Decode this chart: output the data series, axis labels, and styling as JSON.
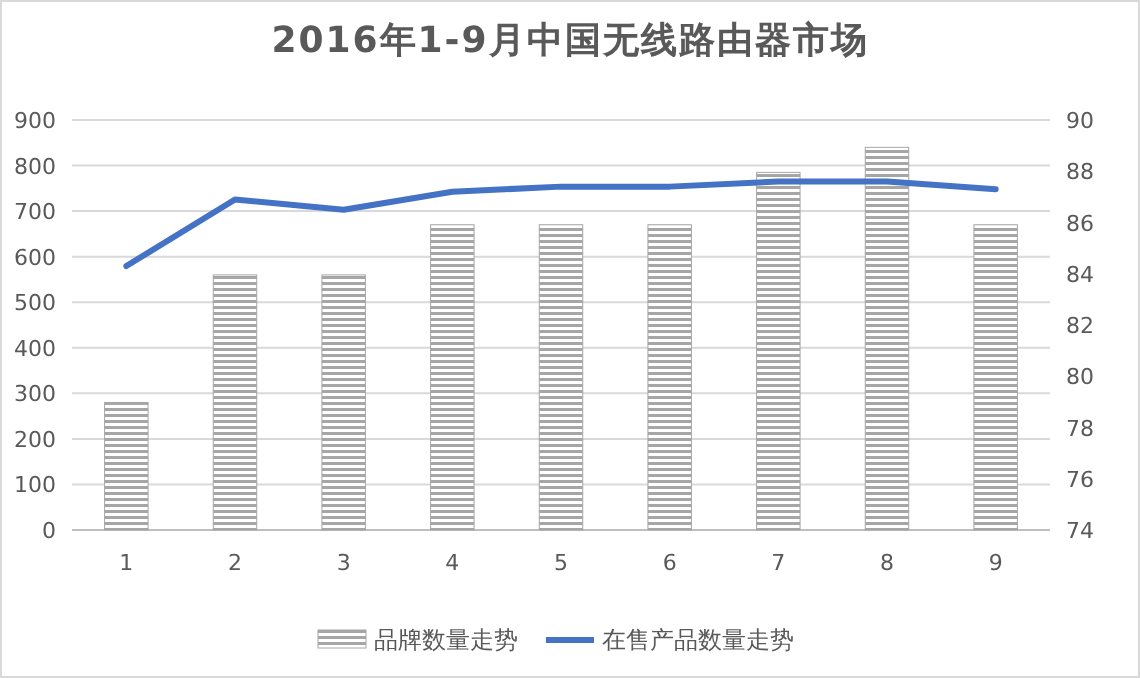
{
  "chart_data": {
    "type": "bar",
    "title": "2016年1-9月中国无线路由器市场",
    "categories": [
      "1",
      "2",
      "3",
      "4",
      "5",
      "6",
      "7",
      "8",
      "9"
    ],
    "series": [
      {
        "name": "品牌数量走势",
        "color": "#a6a6a6",
        "values": [
          280,
          560,
          560,
          670,
          670,
          670,
          785,
          840,
          670
        ]
      },
      {
        "name": "在售产品数量走势",
        "type": "line",
        "axis": "y2",
        "color": "#4472c4",
        "values": [
          84.3,
          86.9,
          86.5,
          87.2,
          87.4,
          87.4,
          87.6,
          87.6,
          87.3
        ]
      }
    ],
    "ylim": [
      0,
      900
    ],
    "yticks": [
      0,
      100,
      200,
      300,
      400,
      500,
      600,
      700,
      800,
      900
    ],
    "y2lim": [
      74,
      90
    ],
    "y2ticks": [
      74,
      76,
      78,
      80,
      82,
      84,
      86,
      88,
      90
    ],
    "grid": "y",
    "legend": "bottom"
  }
}
